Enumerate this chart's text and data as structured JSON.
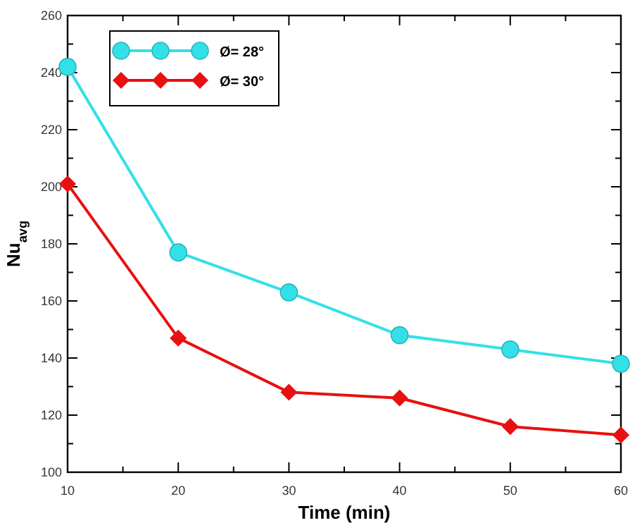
{
  "chart_data": {
    "type": "line",
    "xlabel": "Time (min)",
    "ylabel": "Nu$_{avg}$",
    "x": [
      10,
      20,
      30,
      40,
      50,
      60
    ],
    "xlim": [
      10,
      60
    ],
    "ylim": [
      100,
      260
    ],
    "xticks": [
      10,
      {
        "value": 15,
        "label": null
      },
      20,
      {
        "value": 25,
        "label": null
      },
      30,
      {
        "value": 35,
        "label": null
      },
      40,
      {
        "value": 45,
        "label": null
      },
      50,
      {
        "value": 55,
        "label": null
      },
      60
    ],
    "yticks": [
      100,
      {
        "value": 110,
        "label": null
      },
      120,
      {
        "value": 130,
        "label": null
      },
      140,
      {
        "value": 150,
        "label": null
      },
      160,
      {
        "value": 170,
        "label": null
      },
      180,
      {
        "value": 190,
        "label": null
      },
      200,
      {
        "value": 210,
        "label": null
      },
      220,
      {
        "value": 230,
        "label": null
      },
      240,
      {
        "value": 250,
        "label": null
      },
      260
    ],
    "grid": false,
    "legend": "top left",
    "series": [
      {
        "name": "Ø= 28°",
        "color": "#33e0e8",
        "marker": "circle",
        "values": [
          242,
          177,
          163,
          148,
          143,
          138
        ]
      },
      {
        "name": "Ø= 30°",
        "color": "#e81010",
        "marker": "diamond",
        "values": [
          201,
          147,
          128,
          126,
          116,
          113
        ]
      }
    ]
  }
}
